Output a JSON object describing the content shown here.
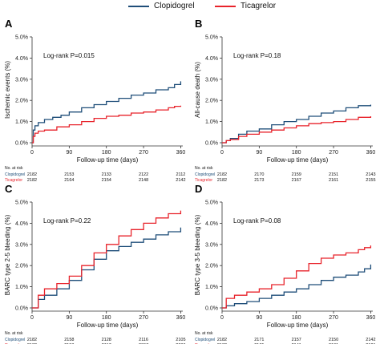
{
  "legend": {
    "items": [
      {
        "label": "Clopidogrel",
        "color": "#1f4e79"
      },
      {
        "label": "Ticagrelor",
        "color": "#e8232b"
      }
    ]
  },
  "chart_data": [
    {
      "type": "line",
      "panel": "A",
      "ylabel": "Ischemic events (%)",
      "xlabel": "Follow-up time (days)",
      "annotation": "Log-rank P=0.015",
      "xlim": [
        0,
        365
      ],
      "ylim": [
        0,
        5
      ],
      "x_ticks": [
        "0",
        "90",
        "180",
        "270",
        "360"
      ],
      "y_ticks": [
        "0.0%",
        "1.0%",
        "2.0%",
        "3.0%",
        "4.0%",
        "5.0%"
      ],
      "risk_table_title": "No. at risk",
      "series": [
        {
          "name": "Clopidogrel",
          "color": "#1f4e79",
          "x": [
            0,
            3,
            7,
            15,
            30,
            50,
            70,
            90,
            120,
            150,
            180,
            210,
            240,
            270,
            300,
            330,
            345,
            360
          ],
          "y": [
            0.0,
            0.6,
            0.8,
            0.95,
            1.1,
            1.2,
            1.3,
            1.45,
            1.65,
            1.8,
            1.95,
            2.1,
            2.25,
            2.35,
            2.5,
            2.6,
            2.75,
            2.9
          ]
        },
        {
          "name": "Ticagrelor",
          "color": "#e8232b",
          "x": [
            0,
            3,
            7,
            15,
            30,
            60,
            90,
            120,
            150,
            180,
            210,
            240,
            270,
            300,
            330,
            345,
            360
          ],
          "y": [
            0.0,
            0.3,
            0.45,
            0.55,
            0.6,
            0.75,
            0.85,
            1.0,
            1.15,
            1.25,
            1.3,
            1.4,
            1.45,
            1.55,
            1.65,
            1.72,
            1.75
          ]
        }
      ],
      "risk_table": [
        {
          "name": "Clopidogrel",
          "values": [
            "2182",
            "2153",
            "2133",
            "2122",
            "2112"
          ]
        },
        {
          "name": "Ticagrelor",
          "values": [
            "2182",
            "2164",
            "2154",
            "2148",
            "2142"
          ]
        }
      ]
    },
    {
      "type": "line",
      "panel": "B",
      "ylabel": "All-cause death (%)",
      "xlabel": "Follow-up time (days)",
      "annotation": "Log-rank P=0.18",
      "xlim": [
        0,
        365
      ],
      "ylim": [
        0,
        5
      ],
      "x_ticks": [
        "0",
        "90",
        "180",
        "270",
        "360"
      ],
      "y_ticks": [
        "0.0%",
        "1.0%",
        "2.0%",
        "3.0%",
        "4.0%",
        "5.0%"
      ],
      "risk_table_title": "No. at risk",
      "series": [
        {
          "name": "Clopidogrel",
          "color": "#1f4e79",
          "x": [
            0,
            10,
            20,
            40,
            60,
            90,
            120,
            150,
            180,
            210,
            240,
            270,
            300,
            330,
            360
          ],
          "y": [
            0.0,
            0.1,
            0.2,
            0.4,
            0.55,
            0.65,
            0.85,
            1.0,
            1.1,
            1.25,
            1.4,
            1.5,
            1.65,
            1.75,
            1.8
          ]
        },
        {
          "name": "Ticagrelor",
          "color": "#e8232b",
          "x": [
            0,
            10,
            20,
            40,
            60,
            90,
            120,
            150,
            180,
            210,
            240,
            270,
            300,
            330,
            360
          ],
          "y": [
            0.0,
            0.1,
            0.15,
            0.3,
            0.4,
            0.5,
            0.6,
            0.7,
            0.8,
            0.9,
            0.95,
            1.0,
            1.1,
            1.2,
            1.25
          ]
        }
      ],
      "risk_table": [
        {
          "name": "Clopidogrel",
          "values": [
            "2182",
            "2170",
            "2159",
            "2151",
            "2143"
          ]
        },
        {
          "name": "Ticagrelor",
          "values": [
            "2182",
            "2173",
            "2167",
            "2161",
            "2155"
          ]
        }
      ]
    },
    {
      "type": "line",
      "panel": "C",
      "ylabel": "BARC type 2-5 bleeding (%)",
      "xlabel": "Follow-up time (days)",
      "annotation": "Log-rank P=0.22",
      "xlim": [
        0,
        365
      ],
      "ylim": [
        0,
        5
      ],
      "x_ticks": [
        "0",
        "90",
        "180",
        "270",
        "360"
      ],
      "y_ticks": [
        "0.0%",
        "1.0%",
        "2.0%",
        "3.0%",
        "4.0%",
        "5.0%"
      ],
      "risk_table_title": "No. at risk",
      "series": [
        {
          "name": "Clopidogrel",
          "color": "#1f4e79",
          "x": [
            0,
            15,
            30,
            60,
            90,
            120,
            150,
            180,
            210,
            240,
            270,
            300,
            330,
            360
          ],
          "y": [
            0.0,
            0.4,
            0.6,
            0.9,
            1.3,
            1.8,
            2.3,
            2.7,
            2.9,
            3.1,
            3.25,
            3.45,
            3.6,
            3.8
          ]
        },
        {
          "name": "Ticagrelor",
          "color": "#e8232b",
          "x": [
            0,
            15,
            30,
            60,
            90,
            120,
            150,
            180,
            210,
            240,
            270,
            300,
            330,
            360
          ],
          "y": [
            0.0,
            0.6,
            0.9,
            1.15,
            1.5,
            2.0,
            2.6,
            3.0,
            3.4,
            3.7,
            4.0,
            4.25,
            4.45,
            4.6
          ]
        }
      ],
      "risk_table": [
        {
          "name": "Clopidogrel",
          "values": [
            "2182",
            "2158",
            "2128",
            "2116",
            "2105"
          ]
        },
        {
          "name": "Ticagrelor",
          "values": [
            "2182",
            "2153",
            "2117",
            "2097",
            "2086"
          ]
        }
      ]
    },
    {
      "type": "line",
      "panel": "D",
      "ylabel": "BARC type 3-5 bleeding (%)",
      "xlabel": "Follow-up time (days)",
      "annotation": "Log-rank P=0.08",
      "xlim": [
        0,
        365
      ],
      "ylim": [
        0,
        5
      ],
      "x_ticks": [
        "0",
        "90",
        "180",
        "270",
        "360"
      ],
      "y_ticks": [
        "0.0%",
        "1.0%",
        "2.0%",
        "3.0%",
        "4.0%",
        "5.0%"
      ],
      "risk_table_title": "No. at risk",
      "series": [
        {
          "name": "Clopidogrel",
          "color": "#1f4e79",
          "x": [
            0,
            10,
            30,
            60,
            90,
            120,
            150,
            180,
            210,
            240,
            270,
            300,
            330,
            345,
            360
          ],
          "y": [
            0.0,
            0.1,
            0.2,
            0.3,
            0.45,
            0.6,
            0.75,
            0.9,
            1.1,
            1.3,
            1.45,
            1.55,
            1.7,
            1.85,
            2.05
          ]
        },
        {
          "name": "Ticagrelor",
          "color": "#e8232b",
          "x": [
            0,
            10,
            30,
            60,
            90,
            120,
            150,
            180,
            210,
            240,
            270,
            300,
            330,
            345,
            360
          ],
          "y": [
            0.0,
            0.45,
            0.6,
            0.75,
            0.9,
            1.1,
            1.4,
            1.75,
            2.1,
            2.35,
            2.5,
            2.6,
            2.75,
            2.85,
            2.95
          ]
        }
      ],
      "risk_table": [
        {
          "name": "Clopidogrel",
          "values": [
            "2182",
            "2171",
            "2157",
            "2150",
            "2142"
          ]
        },
        {
          "name": "Ticagrelor",
          "values": [
            "2182",
            "2165",
            "2141",
            "2131",
            "2121"
          ]
        }
      ]
    }
  ]
}
